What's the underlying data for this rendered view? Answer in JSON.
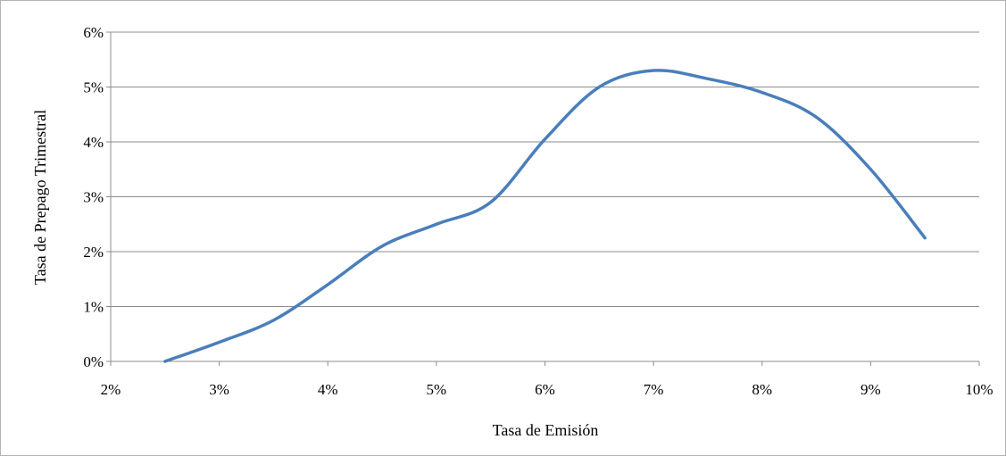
{
  "chart_data": {
    "type": "line",
    "xlabel": "Tasa de Emisión",
    "ylabel": "Tasa de Prepago Trimestral",
    "xlim": [
      0.02,
      0.1
    ],
    "ylim": [
      0,
      0.06
    ],
    "x_ticks": [
      0.02,
      0.03,
      0.04,
      0.05,
      0.06,
      0.07,
      0.08,
      0.09,
      0.1
    ],
    "x_tick_labels": [
      "2%",
      "3%",
      "4%",
      "5%",
      "6%",
      "7%",
      "8%",
      "9%",
      "10%"
    ],
    "y_ticks": [
      0,
      0.01,
      0.02,
      0.03,
      0.04,
      0.05,
      0.06
    ],
    "y_tick_labels": [
      "0%",
      "1%",
      "2%",
      "3%",
      "4%",
      "5%",
      "6%"
    ],
    "grid": "horizontal",
    "series_color": "#4a7ebb",
    "series": [
      {
        "x": [
          0.025,
          0.03,
          0.035,
          0.04,
          0.045,
          0.05,
          0.055,
          0.06,
          0.065,
          0.07,
          0.075,
          0.08,
          0.085,
          0.09,
          0.095
        ],
        "y": [
          0.0,
          0.0035,
          0.0075,
          0.014,
          0.021,
          0.025,
          0.029,
          0.0405,
          0.05,
          0.053,
          0.0515,
          0.049,
          0.0445,
          0.035,
          0.0225
        ]
      }
    ]
  }
}
